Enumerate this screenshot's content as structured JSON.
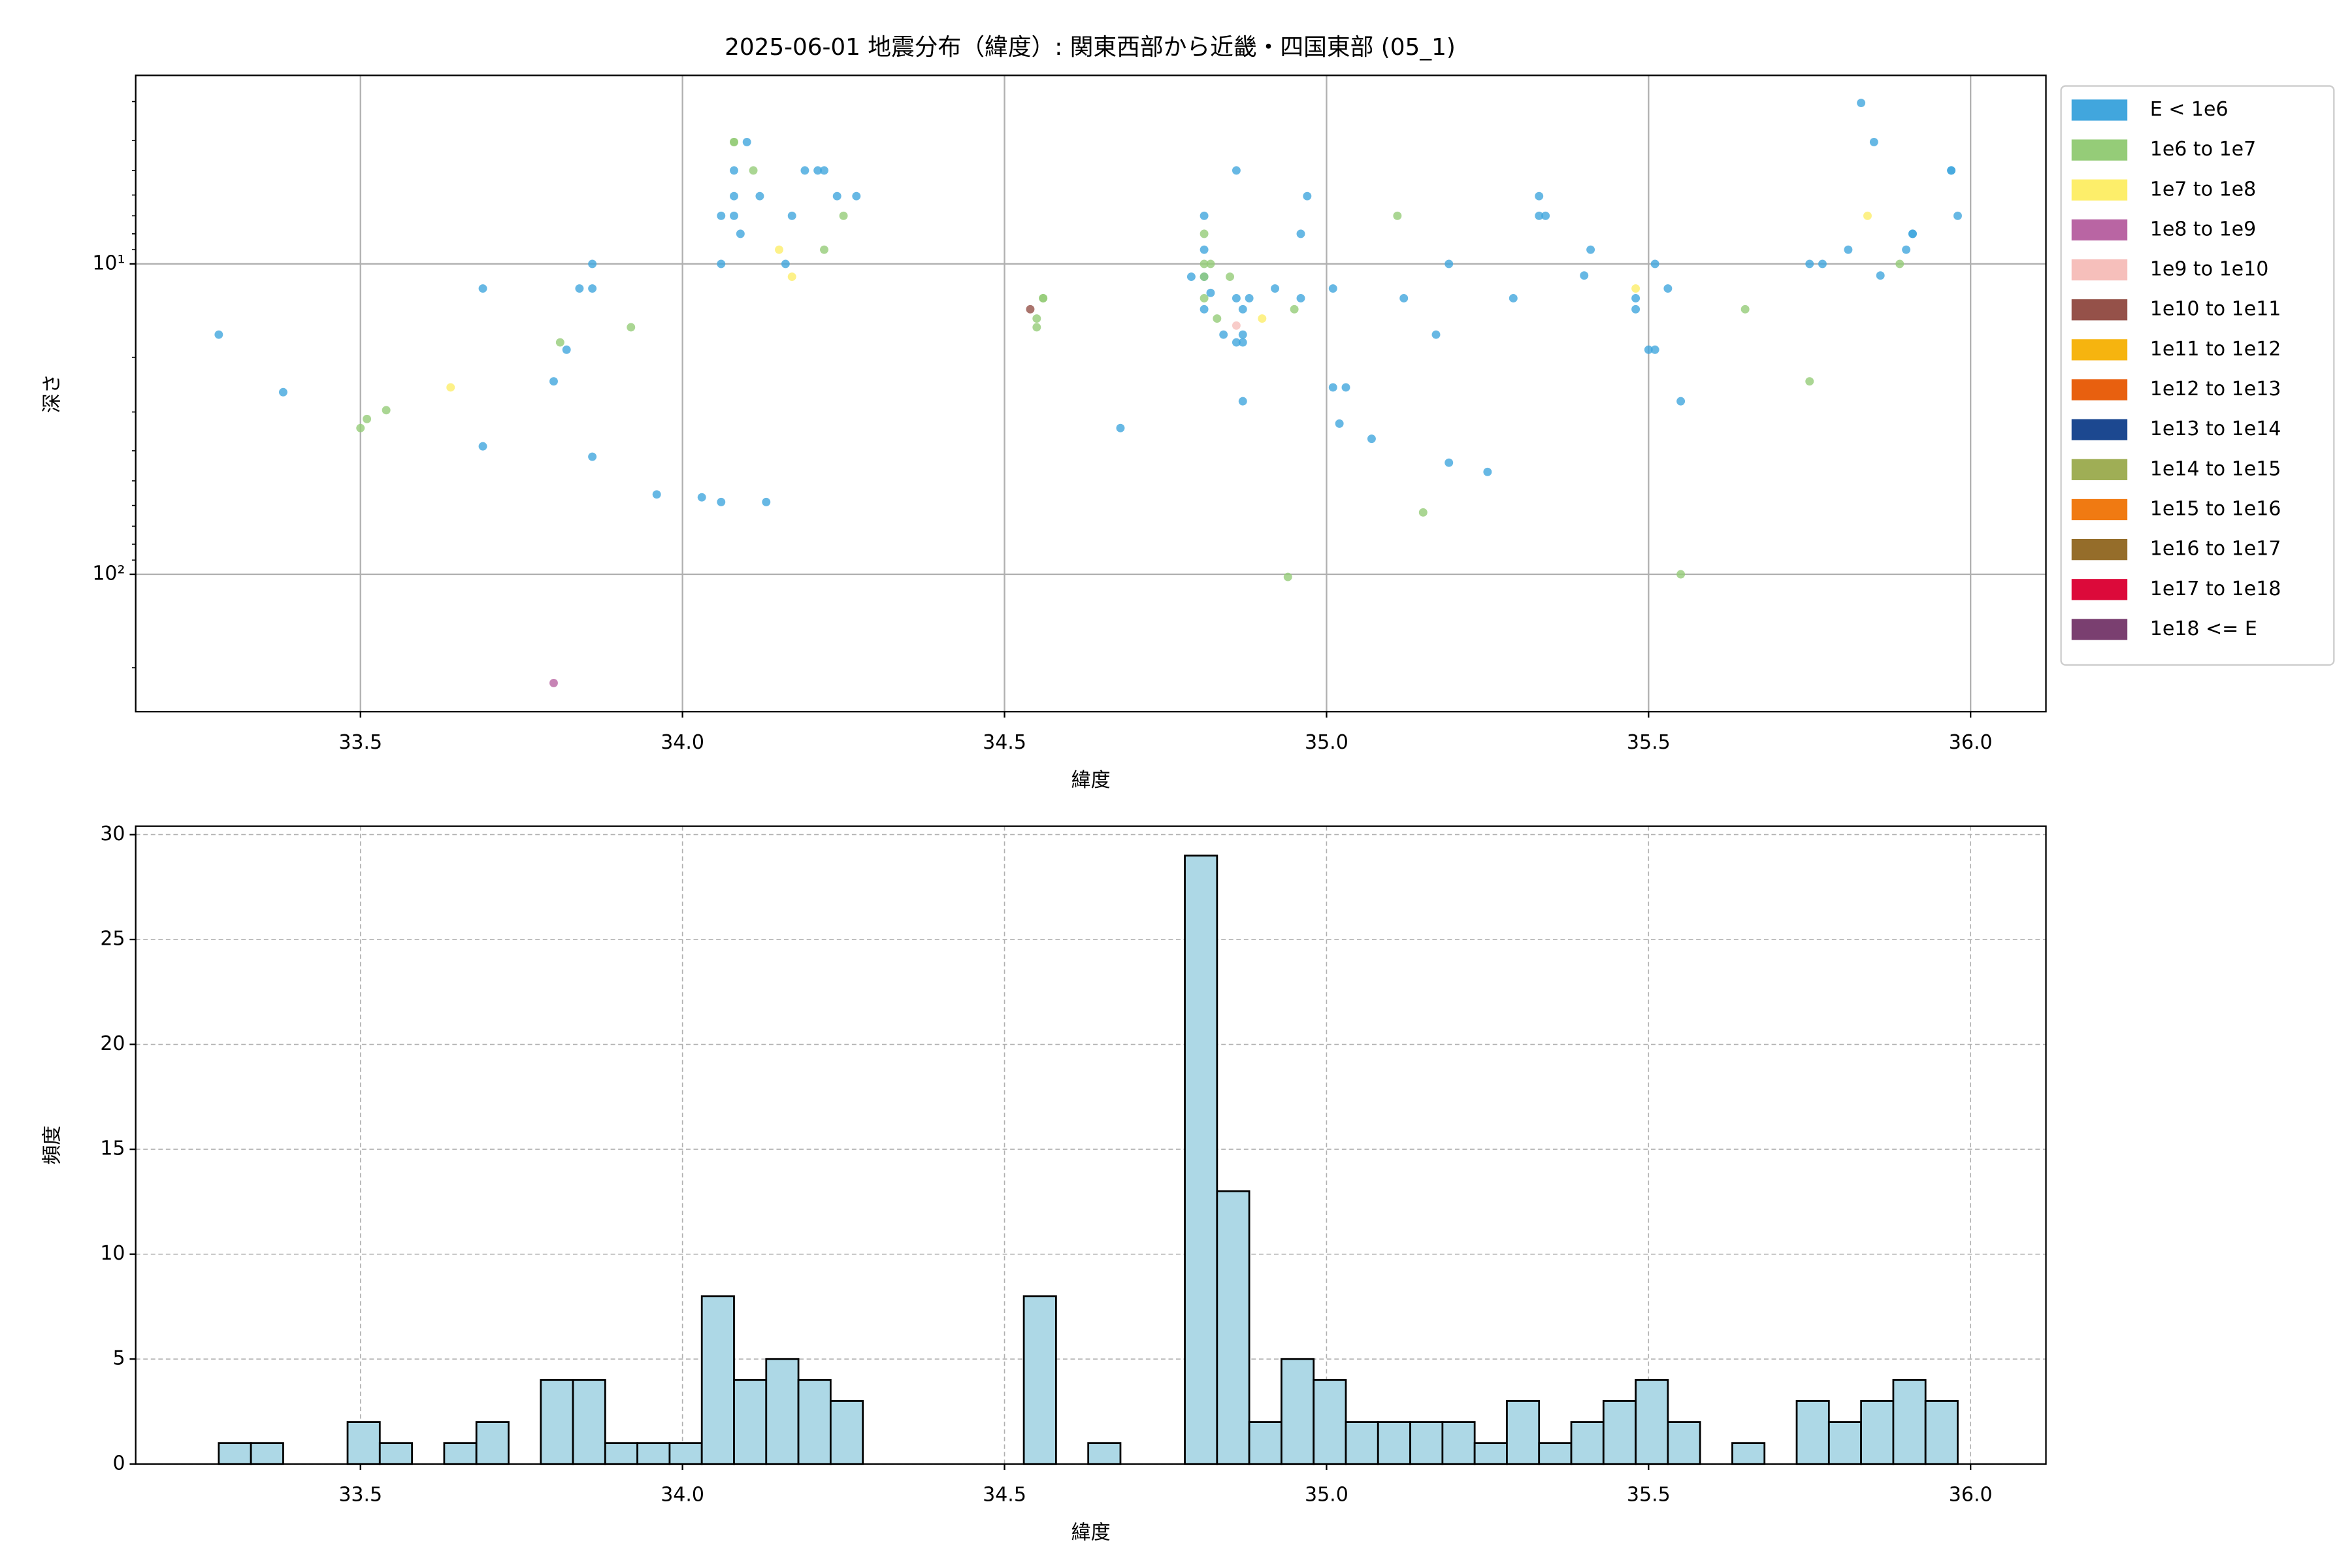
{
  "chart_data": [
    {
      "type": "scatter",
      "title": "2025-06-01 地震分布（緯度）: 関東西部から近畿・四国東部 (05_1)",
      "x_label": "緯度",
      "y_label": "深さ",
      "xlim": [
        33.151,
        36.117
      ],
      "xticks": [
        33.5,
        {
          "value": 34,
          "label": "34.0"
        },
        34.5,
        {
          "value": 35,
          "label": "35.0"
        },
        35.5,
        {
          "value": 36,
          "label": "36.0"
        }
      ],
      "ylim": [
        277,
        2.47
      ],
      "y_scale": "log",
      "y_inverted": true,
      "yticks": [
        {
          "value": 10,
          "label": "10¹"
        },
        {
          "value": 100,
          "label": "10²"
        }
      ],
      "yminorticks": [
        3,
        4,
        5,
        6,
        7,
        8,
        9,
        20,
        30,
        40,
        50,
        60,
        70,
        80,
        90,
        200
      ],
      "grid": true,
      "legend": "outside-right",
      "series": [
        {
          "name": "E < 1e6",
          "color": "#41a6dd",
          "x": [
            33.28,
            33.38,
            33.69,
            33.69,
            33.8,
            33.82,
            33.84,
            33.86,
            33.86,
            33.86,
            33.96,
            34.03,
            34.06,
            34.13,
            34.06,
            34.06,
            34.08,
            34.08,
            34.08,
            34.09,
            34.1,
            34.12,
            34.17,
            34.16,
            34.19,
            34.21,
            34.22,
            34.24,
            34.27,
            34.68,
            34.79,
            34.81,
            34.81,
            34.81,
            34.81,
            34.82,
            34.84,
            34.86,
            34.86,
            34.87,
            34.86,
            34.87,
            34.87,
            34.87,
            34.88,
            34.92,
            34.96,
            34.96,
            34.97,
            35.01,
            35.01,
            35.03,
            35.02,
            35.07,
            35.12,
            35.17,
            35.19,
            35.19,
            35.25,
            35.29,
            35.33,
            35.33,
            35.34,
            35.4,
            35.41,
            35.48,
            35.48,
            35.51,
            35.5,
            35.51,
            35.53,
            35.55,
            35.75,
            35.77,
            35.81,
            35.83,
            35.85,
            35.86,
            35.9,
            35.91,
            35.91,
            35.97,
            35.97,
            35.98
          ],
          "values": [
            16.9,
            25.9,
            12.0,
            38.7,
            23.9,
            18.9,
            12.0,
            10,
            12.0,
            41.8,
            55.3,
            56.5,
            58.5,
            58.5,
            10,
            7.0,
            6.05,
            5.0,
            7.0,
            8.0,
            4.05,
            6.05,
            7.0,
            10,
            5.0,
            5.0,
            5.0,
            6.05,
            6.05,
            33.8,
            11.0,
            11.0,
            9.0,
            14.0,
            7.0,
            12.4,
            16.9,
            5.0,
            12.9,
            14.0,
            17.9,
            17.9,
            16.9,
            27.7,
            12.9,
            12.0,
            12.9,
            8.0,
            6.05,
            12.0,
            25.0,
            25.0,
            32.7,
            36.6,
            12.9,
            16.9,
            10,
            43.7,
            46.8,
            12.9,
            6.05,
            7.0,
            7.0,
            10.9,
            9.0,
            12.9,
            14.0,
            10,
            18.9,
            18.9,
            12.0,
            27.7,
            10,
            10,
            9.0,
            3.03,
            4.05,
            10.9,
            9.0,
            8.0,
            8.0,
            5.0,
            5.0,
            7.0
          ]
        },
        {
          "name": "1e6 to 1e7",
          "color": "#95cc78",
          "x": [
            33.5,
            33.51,
            33.54,
            33.81,
            33.92,
            34.08,
            34.08,
            34.11,
            34.22,
            34.25,
            34.55,
            34.55,
            34.56,
            34.56,
            34.81,
            34.81,
            34.81,
            34.81,
            34.82,
            34.83,
            34.85,
            34.95,
            35.11,
            35.15,
            34.94,
            35.55,
            35.65,
            35.75,
            35.89
          ],
          "values": [
            33.8,
            31.6,
            29.6,
            17.9,
            16.0,
            4.05,
            4.05,
            5.0,
            9.0,
            7.0,
            16.0,
            15.0,
            12.9,
            12.9,
            12.9,
            8.0,
            10,
            11.0,
            10,
            15.0,
            11.0,
            14.0,
            7.0,
            63.2,
            102,
            100,
            14.0,
            23.9,
            10
          ]
        },
        {
          "name": "1e7 to 1e8",
          "color": "#fdee6a",
          "x": [
            33.64,
            34.15,
            34.17,
            34.9,
            35.48,
            35.84
          ],
          "values": [
            25.0,
            9.0,
            11.0,
            15.0,
            12.0,
            7.0
          ]
        },
        {
          "name": "1e8 to 1e9",
          "color": "#b965a3",
          "x": [
            33.8
          ],
          "values": [
            224
          ]
        },
        {
          "name": "1e9 to 1e10",
          "color": "#f6bfbb",
          "x": [
            34.86
          ],
          "values": [
            15.8
          ]
        },
        {
          "name": "1e10 to 1e11",
          "color": "#955149",
          "x": [
            34.54
          ],
          "values": [
            14.0
          ]
        },
        {
          "name": "1e11 to 1e12",
          "color": "#f6b40f",
          "x": [],
          "values": []
        },
        {
          "name": "1e12 to 1e13",
          "color": "#e8600f",
          "x": [],
          "values": []
        },
        {
          "name": "1e13 to 1e14",
          "color": "#1c4890",
          "x": [],
          "values": []
        },
        {
          "name": "1e14 to 1e15",
          "color": "#9fae55",
          "x": [],
          "values": []
        },
        {
          "name": "1e15 to 1e16",
          "color": "#f07a12",
          "x": [],
          "values": []
        },
        {
          "name": "1e16 to 1e17",
          "color": "#956d2a",
          "x": [],
          "values": []
        },
        {
          "name": "1e17 to 1e18",
          "color": "#dc0a3a",
          "x": [],
          "values": []
        },
        {
          "name": "1e18 <= E",
          "color": "#7a3f70",
          "x": [],
          "values": []
        }
      ]
    },
    {
      "type": "histogram",
      "x_label": "緯度",
      "y_label": "頻度",
      "xlim": [
        33.151,
        36.117
      ],
      "xticks": [
        33.5,
        {
          "value": 34,
          "label": "34.0"
        },
        34.5,
        {
          "value": 35,
          "label": "35.0"
        },
        35.5,
        {
          "value": 36,
          "label": "36.0"
        }
      ],
      "ylim": [
        0,
        30.4
      ],
      "yticks": [
        0,
        5,
        10,
        15,
        20,
        25,
        30
      ],
      "grid": true,
      "color": "#add8e6",
      "bins": [
        33.28,
        33.33,
        33.38,
        33.43,
        33.48,
        33.53,
        33.58,
        33.63,
        33.68,
        33.73,
        33.78,
        33.83,
        33.88,
        33.93,
        33.98,
        34.03,
        34.08,
        34.13,
        34.18,
        34.23,
        34.28,
        34.33,
        34.38,
        34.43,
        34.48,
        34.53,
        34.58,
        34.63,
        34.68,
        34.73,
        34.78,
        34.83,
        34.88,
        34.93,
        34.98,
        35.03,
        35.08,
        35.13,
        35.18,
        35.23,
        35.28,
        35.33,
        35.38,
        35.43,
        35.48,
        35.53,
        35.58,
        35.63,
        35.68,
        35.73,
        35.78,
        35.83,
        35.88,
        35.93,
        35.98
      ],
      "values": [
        1,
        1,
        0,
        0,
        2,
        1,
        0,
        1,
        2,
        0,
        4,
        4,
        1,
        1,
        1,
        8,
        4,
        5,
        4,
        3,
        0,
        0,
        0,
        0,
        0,
        8,
        0,
        1,
        0,
        0,
        29,
        13,
        2,
        5,
        4,
        2,
        2,
        2,
        2,
        1,
        3,
        1,
        2,
        3,
        4,
        2,
        0,
        1,
        0,
        3,
        2,
        3,
        4,
        3
      ]
    }
  ]
}
